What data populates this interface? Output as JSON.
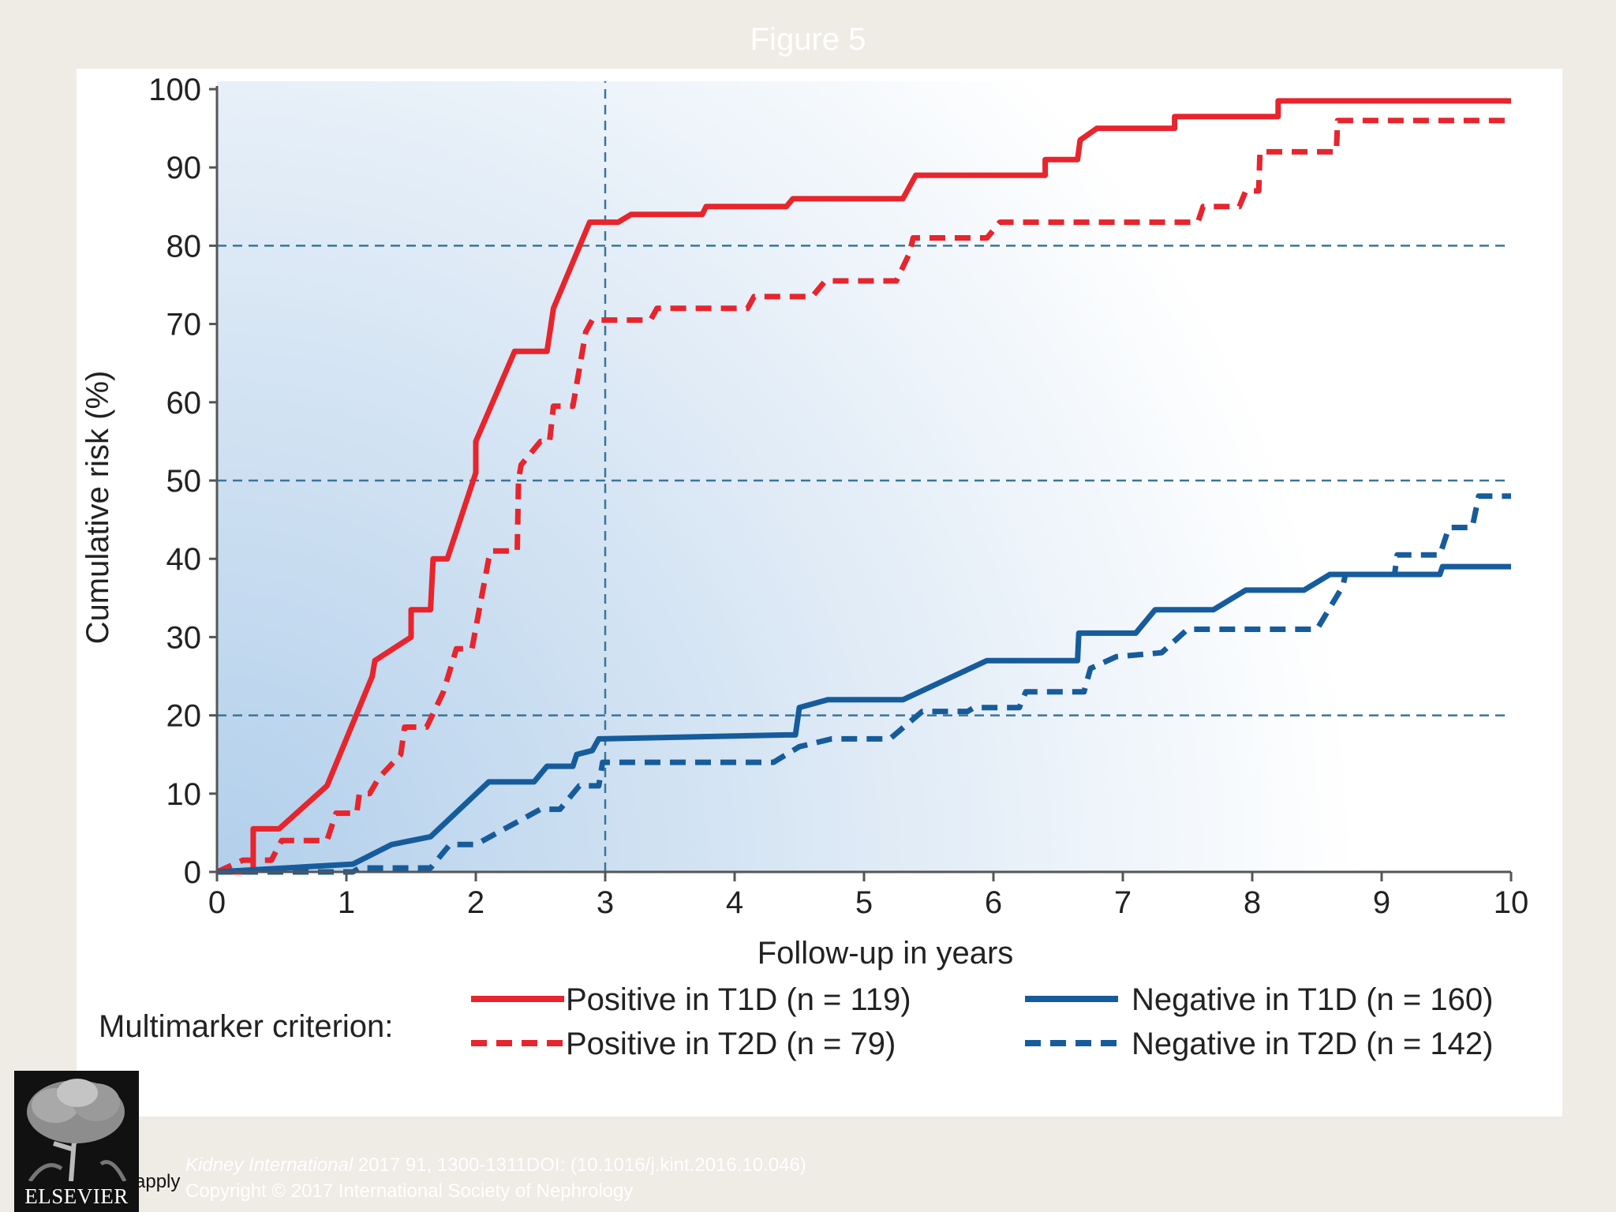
{
  "slide": {
    "title": "Figure 5",
    "publisher": "ELSEVIER",
    "terms_fragment": "apply",
    "citation_journal": "Kidney International",
    "citation_rest": " 2017 91, 1300-1311DOI: (10.1016/j.kint.2016.10.046)",
    "copyright": "Copyright © 2017 International Society of Nephrology"
  },
  "colors": {
    "red": "#e8242c",
    "blue": "#165c9c",
    "refline": "#3b7598",
    "axis": "#555555"
  },
  "chart_data": {
    "type": "line",
    "title": "",
    "xlabel": "Follow-up in years",
    "ylabel": "Cumulative risk (%)",
    "xlim": [
      0,
      10
    ],
    "ylim": [
      0,
      100
    ],
    "xticks": [
      0,
      1,
      2,
      3,
      4,
      5,
      6,
      7,
      8,
      9,
      10
    ],
    "yticks": [
      0,
      10,
      20,
      30,
      40,
      50,
      60,
      70,
      80,
      90,
      100
    ],
    "reference_lines": {
      "horizontal": [
        20,
        50,
        80
      ],
      "vertical": [
        3
      ]
    },
    "legend_title": "Multimarker criterion:",
    "legend_position": "bottom",
    "series": [
      {
        "name": "Positive in T1D (n = 119)",
        "color": "red",
        "style": "solid",
        "points": [
          [
            0,
            0
          ],
          [
            0.28,
            0
          ],
          [
            0.28,
            5.5
          ],
          [
            0.48,
            5.5
          ],
          [
            0.85,
            11
          ],
          [
            1.1,
            21
          ],
          [
            1.2,
            25
          ],
          [
            1.22,
            27
          ],
          [
            1.5,
            30
          ],
          [
            1.5,
            33.5
          ],
          [
            1.65,
            33.5
          ],
          [
            1.67,
            40
          ],
          [
            1.78,
            40
          ],
          [
            2,
            51
          ],
          [
            2,
            55
          ],
          [
            2.3,
            66.5
          ],
          [
            2.55,
            66.5
          ],
          [
            2.6,
            72
          ],
          [
            2.88,
            83
          ],
          [
            3.1,
            83
          ],
          [
            3.2,
            84
          ],
          [
            3.75,
            84
          ],
          [
            3.78,
            85
          ],
          [
            4.4,
            85
          ],
          [
            4.45,
            86
          ],
          [
            5.3,
            86
          ],
          [
            5.4,
            89
          ],
          [
            6.4,
            89
          ],
          [
            6.4,
            91
          ],
          [
            6.65,
            91
          ],
          [
            6.67,
            93.5
          ],
          [
            6.8,
            95
          ],
          [
            7.4,
            95
          ],
          [
            7.4,
            96.5
          ],
          [
            8.2,
            96.5
          ],
          [
            8.2,
            98.5
          ],
          [
            10,
            98.5
          ]
        ]
      },
      {
        "name": "Positive in T2D (n = 79)",
        "color": "red",
        "style": "dashed",
        "points": [
          [
            0,
            0
          ],
          [
            0.2,
            1.5
          ],
          [
            0.42,
            1.5
          ],
          [
            0.5,
            4
          ],
          [
            0.85,
            4
          ],
          [
            0.92,
            7.5
          ],
          [
            1.08,
            7.5
          ],
          [
            1.1,
            10
          ],
          [
            1.18,
            10
          ],
          [
            1.25,
            12
          ],
          [
            1.42,
            15
          ],
          [
            1.45,
            18.5
          ],
          [
            1.62,
            18.5
          ],
          [
            1.75,
            23
          ],
          [
            1.85,
            28.5
          ],
          [
            1.97,
            28.5
          ],
          [
            2.1,
            40
          ],
          [
            2.12,
            41
          ],
          [
            2.32,
            41
          ],
          [
            2.33,
            50
          ],
          [
            2.35,
            52
          ],
          [
            2.5,
            55
          ],
          [
            2.57,
            55
          ],
          [
            2.6,
            59.5
          ],
          [
            2.75,
            59.5
          ],
          [
            2.85,
            69
          ],
          [
            2.9,
            70.5
          ],
          [
            3.35,
            70.5
          ],
          [
            3.4,
            72
          ],
          [
            4.1,
            72
          ],
          [
            4.15,
            73.5
          ],
          [
            4.6,
            73.5
          ],
          [
            4.7,
            75.5
          ],
          [
            5.25,
            75.5
          ],
          [
            5.35,
            79
          ],
          [
            5.38,
            81
          ],
          [
            5.95,
            81
          ],
          [
            6.05,
            83
          ],
          [
            7.58,
            83
          ],
          [
            7.62,
            85
          ],
          [
            7.9,
            85
          ],
          [
            7.95,
            87
          ],
          [
            8.05,
            87
          ],
          [
            8.06,
            92
          ],
          [
            8.65,
            92
          ],
          [
            8.66,
            96
          ],
          [
            10,
            96
          ]
        ]
      },
      {
        "name": "Negative in T1D (n = 160)",
        "color": "blue",
        "style": "solid",
        "points": [
          [
            0,
            0
          ],
          [
            1.05,
            1
          ],
          [
            1.35,
            3.5
          ],
          [
            1.65,
            4.5
          ],
          [
            2.1,
            11.5
          ],
          [
            2.45,
            11.5
          ],
          [
            2.55,
            13.5
          ],
          [
            2.75,
            13.5
          ],
          [
            2.78,
            15
          ],
          [
            2.9,
            15.5
          ],
          [
            2.95,
            17
          ],
          [
            4.4,
            17.5
          ],
          [
            4.47,
            17.5
          ],
          [
            4.5,
            21
          ],
          [
            4.72,
            22
          ],
          [
            5.3,
            22
          ],
          [
            5.95,
            27
          ],
          [
            6.65,
            27
          ],
          [
            6.66,
            30.5
          ],
          [
            7.1,
            30.5
          ],
          [
            7.25,
            33.5
          ],
          [
            7.7,
            33.5
          ],
          [
            7.95,
            36
          ],
          [
            8.4,
            36
          ],
          [
            8.6,
            38
          ],
          [
            9.45,
            38
          ],
          [
            9.47,
            39
          ],
          [
            10,
            39
          ]
        ]
      },
      {
        "name": "Negative in T2D (n = 142)",
        "color": "blue",
        "style": "dashed",
        "points": [
          [
            0,
            0
          ],
          [
            1.05,
            0
          ],
          [
            1.1,
            0.5
          ],
          [
            1.65,
            0.5
          ],
          [
            1.8,
            3.5
          ],
          [
            2,
            3.5
          ],
          [
            2.5,
            8
          ],
          [
            2.65,
            8
          ],
          [
            2.8,
            11
          ],
          [
            2.95,
            11
          ],
          [
            2.98,
            14
          ],
          [
            4.3,
            14
          ],
          [
            4.5,
            16
          ],
          [
            4.75,
            17
          ],
          [
            5.2,
            17
          ],
          [
            5.45,
            20.5
          ],
          [
            5.8,
            20.5
          ],
          [
            5.85,
            21
          ],
          [
            6.2,
            21
          ],
          [
            6.25,
            23
          ],
          [
            6.7,
            23
          ],
          [
            6.75,
            26
          ],
          [
            6.95,
            27.5
          ],
          [
            7.3,
            28
          ],
          [
            7.5,
            31
          ],
          [
            8.5,
            31
          ],
          [
            8.7,
            36.5
          ],
          [
            8.72,
            38
          ],
          [
            9.1,
            38
          ],
          [
            9.12,
            40.5
          ],
          [
            9.45,
            40.5
          ],
          [
            9.52,
            44
          ],
          [
            9.7,
            44
          ],
          [
            9.75,
            48
          ],
          [
            10,
            48
          ]
        ]
      }
    ]
  }
}
